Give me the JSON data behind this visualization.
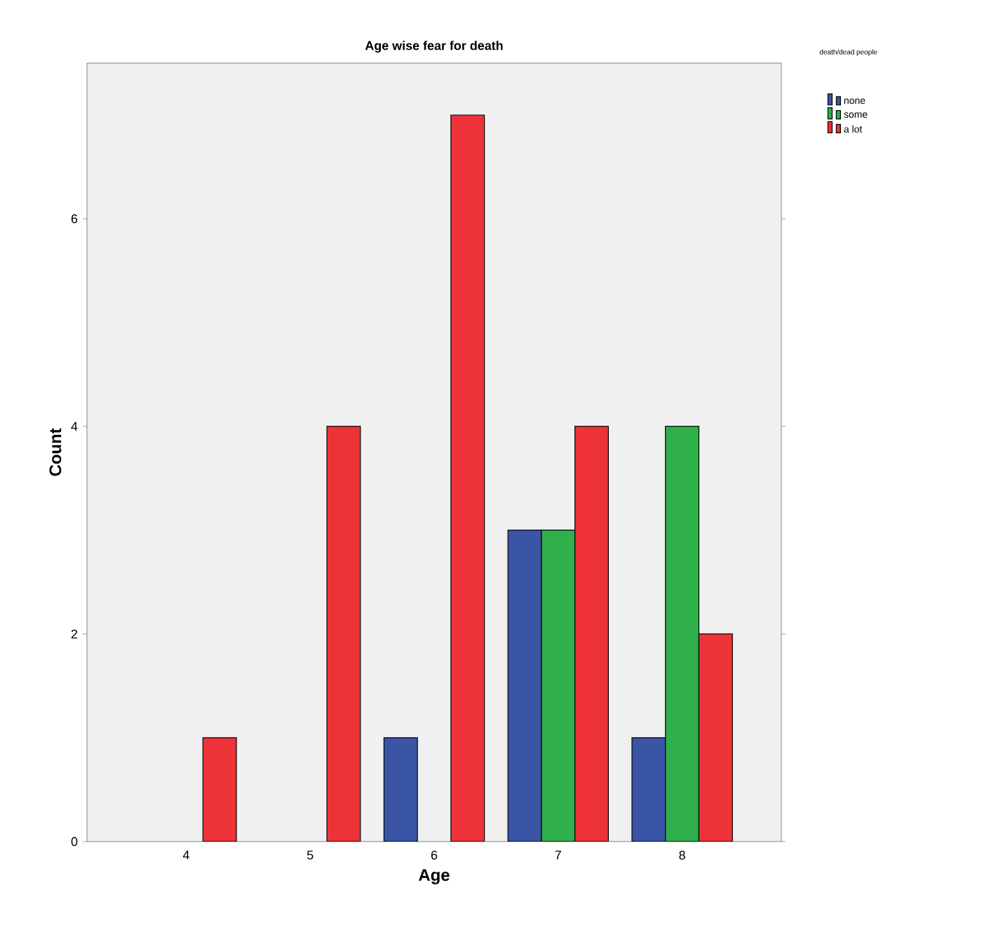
{
  "chart_data": {
    "type": "bar",
    "title": "Age wise fear for death",
    "xlabel": "Age",
    "ylabel": "Count",
    "legend_title": "death/dead people",
    "categories": [
      "4",
      "5",
      "6",
      "7",
      "8"
    ],
    "series": [
      {
        "name": "none",
        "color": "#3a55a6",
        "values": [
          null,
          null,
          1,
          3,
          1
        ]
      },
      {
        "name": "some",
        "color": "#2fb04a",
        "values": [
          null,
          null,
          null,
          3,
          4
        ]
      },
      {
        "name": "a lot",
        "color": "#ee3338",
        "values": [
          1,
          4,
          7,
          4,
          2
        ]
      }
    ],
    "ylim": [
      0,
      7.5
    ],
    "yticks": [
      0,
      2,
      4,
      6
    ],
    "grid": false,
    "legend": "top right"
  }
}
